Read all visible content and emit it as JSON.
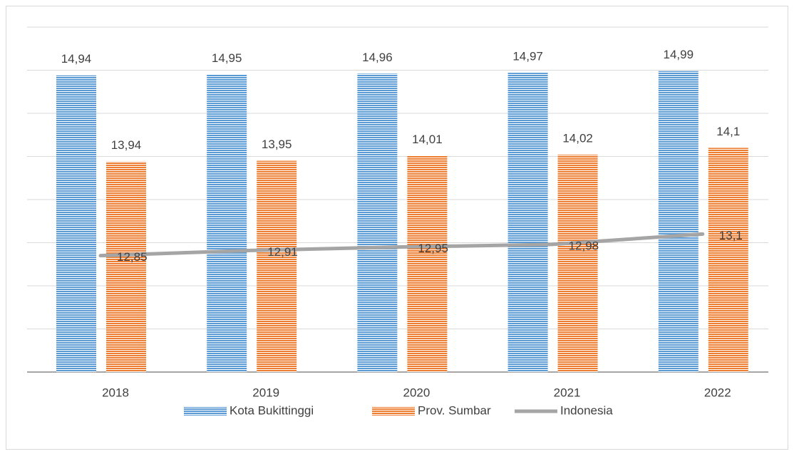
{
  "chart_data": {
    "type": "bar",
    "categories": [
      "2018",
      "2019",
      "2020",
      "2021",
      "2022"
    ],
    "series": [
      {
        "name": "Kota Bukittinggi",
        "type": "bar",
        "color": "#5b9bd5",
        "values": [
          14.94,
          14.95,
          14.96,
          14.97,
          14.99
        ],
        "value_labels": [
          "14,94",
          "14,95",
          "14,96",
          "14,97",
          "14,99"
        ]
      },
      {
        "name": "Prov. Sumbar",
        "type": "bar",
        "color": "#ed7d31",
        "values": [
          13.94,
          13.95,
          14.01,
          14.02,
          14.1
        ],
        "value_labels": [
          "13,94",
          "13,95",
          "14,01",
          "14,02",
          "14,1"
        ]
      },
      {
        "name": "Indonesia",
        "type": "line",
        "color": "#a5a5a5",
        "values": [
          12.85,
          12.91,
          12.95,
          12.98,
          13.1
        ],
        "value_labels": [
          "12,85",
          "12,91",
          "12,95",
          "12,98",
          "13,1"
        ]
      }
    ],
    "ylim": [
      11.5,
      15.5
    ],
    "yticks": [
      11.5,
      12,
      12.5,
      13,
      13.5,
      14,
      14.5,
      15,
      15.5
    ],
    "grid": true,
    "legend": "bottom"
  }
}
